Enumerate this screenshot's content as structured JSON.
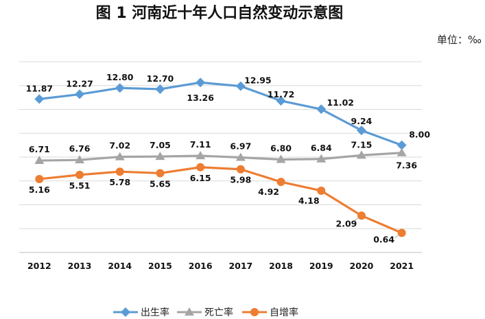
{
  "chart_data": {
    "type": "line",
    "title": "图 1  河南近十年人口自然变动示意图",
    "unit_label": "单位：‰",
    "xlabel": "",
    "ylabel": "",
    "categories": [
      "2012",
      "2013",
      "2014",
      "2015",
      "2016",
      "2017",
      "2018",
      "2019",
      "2020",
      "2021"
    ],
    "ylim": [
      -1,
      15
    ],
    "grid": true,
    "legend_position": "bottom",
    "series": [
      {
        "name": "出生率",
        "marker": "diamond",
        "color": "#5B9BD5",
        "values": [
          11.87,
          12.27,
          12.8,
          12.7,
          13.26,
          12.95,
          11.72,
          11.02,
          9.24,
          8.0
        ],
        "labels": [
          "11.87",
          "12.27",
          "12.80",
          "12.70",
          "13.26",
          "12.95",
          "11.72",
          "11.02",
          "9.24",
          "8.00"
        ]
      },
      {
        "name": "死亡率",
        "marker": "triangle",
        "color": "#A5A5A5",
        "values": [
          6.71,
          6.76,
          7.02,
          7.05,
          7.11,
          6.97,
          6.8,
          6.84,
          7.15,
          7.36
        ],
        "labels": [
          "6.71",
          "6.76",
          "7.02",
          "7.05",
          "7.11",
          "6.97",
          "6.80",
          "6.84",
          "7.15",
          "7.36"
        ]
      },
      {
        "name": "自增率",
        "marker": "circle",
        "color": "#ED7D31",
        "values": [
          5.16,
          5.51,
          5.78,
          5.65,
          6.15,
          5.98,
          4.92,
          4.18,
          2.09,
          0.64
        ],
        "labels": [
          "5.16",
          "5.51",
          "5.78",
          "5.65",
          "6.15",
          "5.98",
          "4.92",
          "4.18",
          "2.09",
          "0.64"
        ]
      }
    ]
  }
}
